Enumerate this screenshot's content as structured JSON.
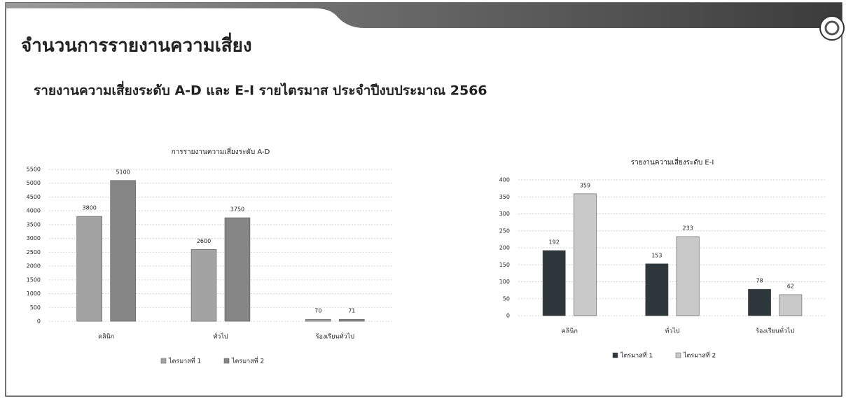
{
  "header": {
    "title": "จำนวนการรายงานความเสี่ยง",
    "subtitle": "รายงานความเสี่ยงระดับ A-D และ E-I รายไตรมาส ประจำปีงบประมาณ 2566"
  },
  "chart_data": [
    {
      "type": "bar",
      "title": "การรายงานความเสี่ยงระดับ A-D",
      "categories": [
        "คลินิก",
        "ทั่วไป",
        "ร้องเรียนทั่วไป"
      ],
      "series": [
        {
          "name": "ไตรมาสที่ 1",
          "color": "#a3a3a3",
          "values": [
            3800,
            2600,
            70
          ]
        },
        {
          "name": "ไตรมาสที่ 2",
          "color": "#858585",
          "values": [
            5100,
            3750,
            71
          ]
        }
      ],
      "ylim": [
        0,
        5500
      ],
      "yticks": [
        0,
        500,
        1000,
        1500,
        2000,
        2500,
        3000,
        3500,
        4000,
        4500,
        5000,
        5500
      ],
      "grid": true,
      "legend": "bottom"
    },
    {
      "type": "bar",
      "title": "รายงานความเสี่ยงระดับ E-I",
      "categories": [
        "คลินิก",
        "ทั่วไป",
        "ร้องเรียนทั่วไป"
      ],
      "series": [
        {
          "name": "ไตรมาสที่ 1",
          "color": "#2e373b",
          "values": [
            192,
            153,
            78
          ]
        },
        {
          "name": "ไตรมาสที่ 2",
          "color": "#c9c9c9",
          "values": [
            359,
            233,
            62
          ]
        }
      ],
      "ylim": [
        0,
        400
      ],
      "yticks": [
        0,
        50,
        100,
        150,
        200,
        250,
        300,
        350,
        400
      ],
      "grid": true,
      "legend": "bottom"
    }
  ]
}
